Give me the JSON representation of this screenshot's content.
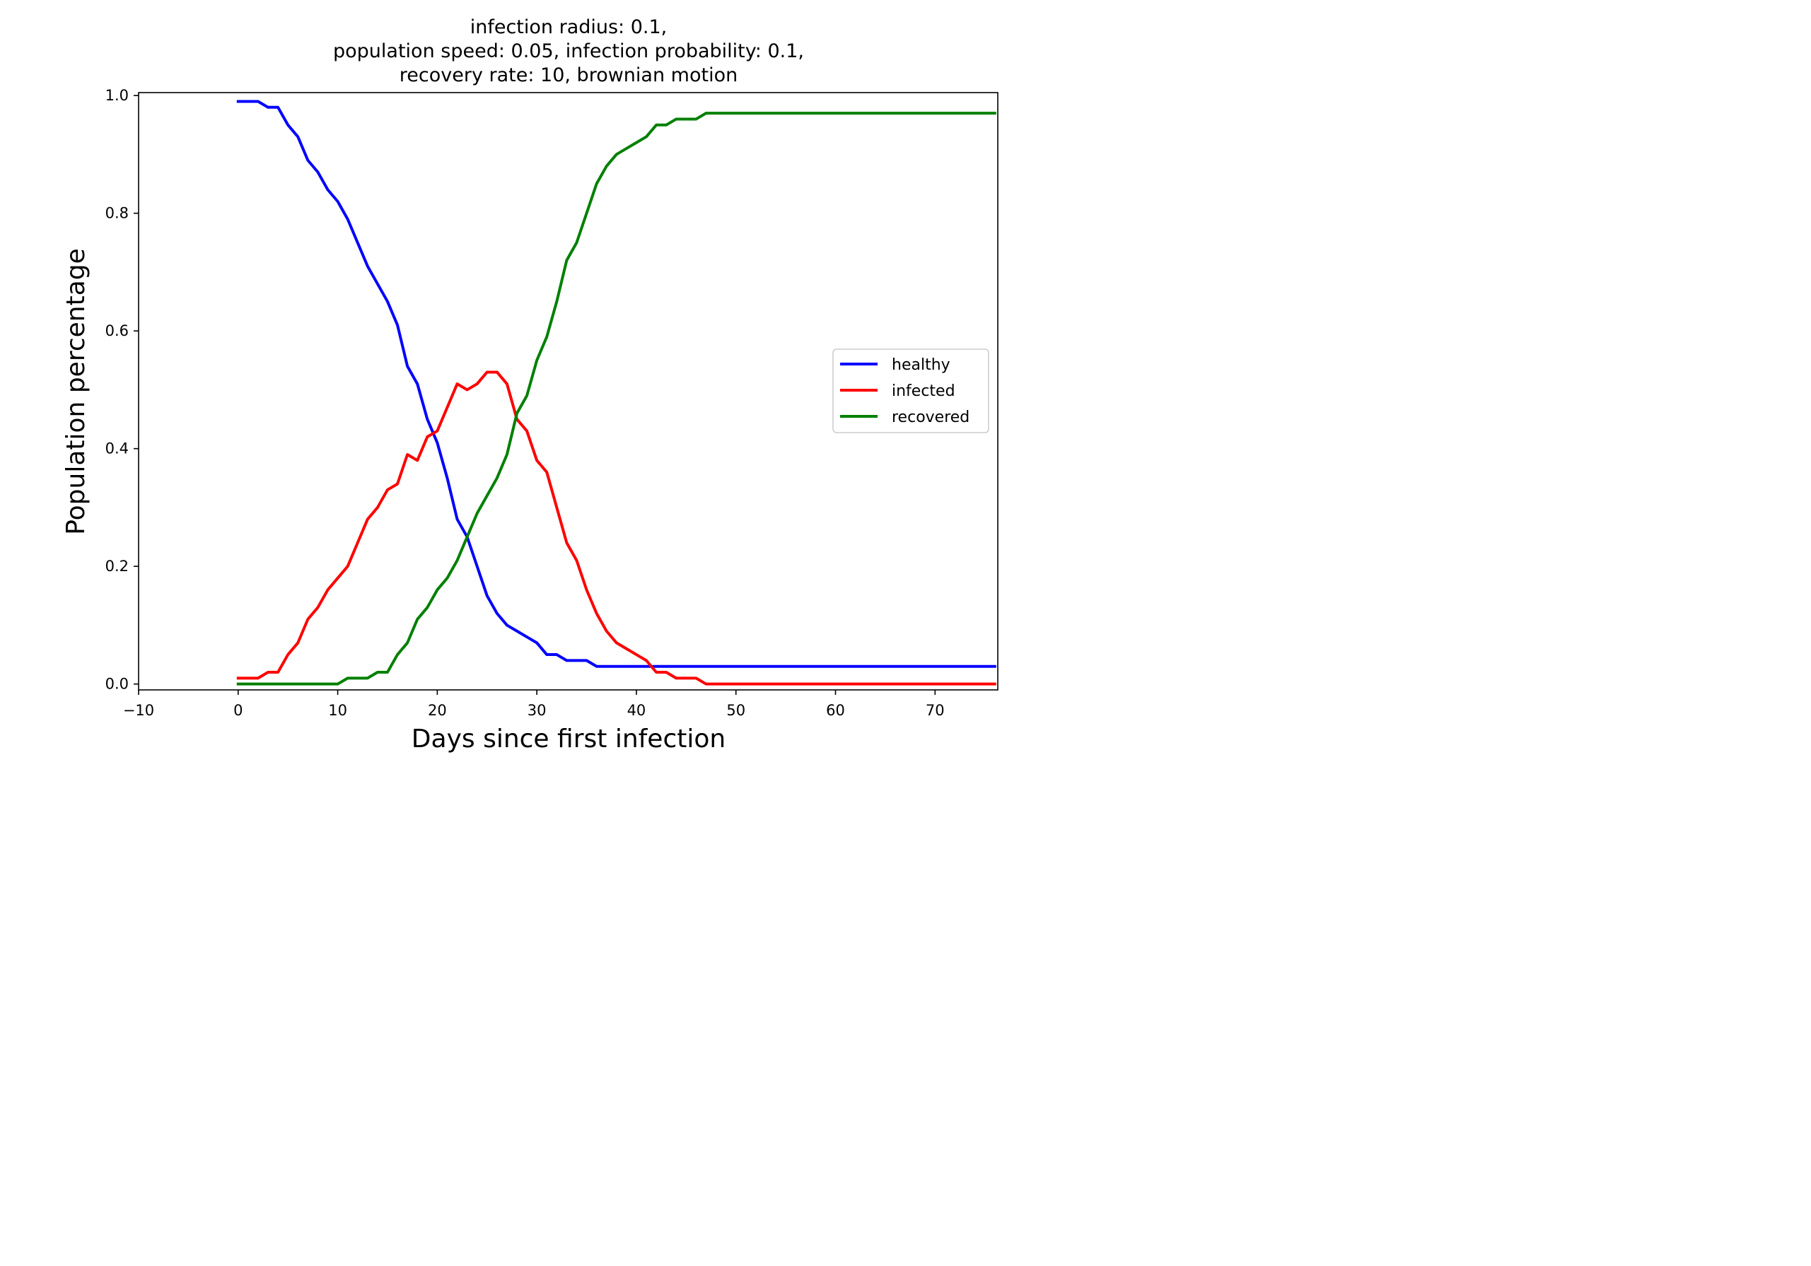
{
  "chart_data": {
    "type": "line",
    "title": [
      "infection radius: 0.1,",
      "population speed: 0.05, infection probability: 0.1,",
      "recovery rate: 10, brownian motion"
    ],
    "xlabel": "Days since first infection",
    "ylabel": "Population percentage",
    "xlim": [
      -10,
      76.3
    ],
    "ylim": [
      -0.01,
      1.005
    ],
    "xticks": [
      -10,
      0,
      10,
      20,
      30,
      40,
      50,
      60,
      70
    ],
    "xtick_labels": [
      "−10",
      "0",
      "10",
      "20",
      "30",
      "40",
      "50",
      "60",
      "70"
    ],
    "yticks": [
      0.0,
      0.2,
      0.4,
      0.6,
      0.8,
      1.0
    ],
    "ytick_labels": [
      "0.0",
      "0.2",
      "0.4",
      "0.6",
      "0.8",
      "1.0"
    ],
    "grid": false,
    "legend_position": "center-right",
    "x": [
      0,
      1,
      2,
      3,
      4,
      5,
      6,
      7,
      8,
      9,
      10,
      11,
      12,
      13,
      14,
      15,
      16,
      17,
      18,
      19,
      20,
      21,
      22,
      23,
      24,
      25,
      26,
      27,
      28,
      29,
      30,
      31,
      32,
      33,
      34,
      35,
      36,
      37,
      38,
      39,
      40,
      41,
      42,
      43,
      44,
      45,
      46,
      47,
      48,
      49,
      50,
      51,
      52,
      53,
      54,
      55,
      56,
      57,
      58,
      59,
      60,
      61,
      62,
      63,
      64,
      65,
      66,
      67,
      68,
      69,
      70,
      71,
      72,
      73,
      74,
      75,
      76
    ],
    "series": [
      {
        "name": "healthy",
        "color": "#0000ff",
        "values": [
          0.99,
          0.99,
          0.99,
          0.98,
          0.98,
          0.95,
          0.93,
          0.89,
          0.87,
          0.84,
          0.82,
          0.79,
          0.75,
          0.71,
          0.68,
          0.65,
          0.61,
          0.54,
          0.51,
          0.45,
          0.41,
          0.35,
          0.28,
          0.25,
          0.2,
          0.15,
          0.12,
          0.1,
          0.09,
          0.08,
          0.07,
          0.05,
          0.05,
          0.04,
          0.04,
          0.04,
          0.03,
          0.03,
          0.03,
          0.03,
          0.03,
          0.03,
          0.03,
          0.03,
          0.03,
          0.03,
          0.03,
          0.03,
          0.03,
          0.03,
          0.03,
          0.03,
          0.03,
          0.03,
          0.03,
          0.03,
          0.03,
          0.03,
          0.03,
          0.03,
          0.03,
          0.03,
          0.03,
          0.03,
          0.03,
          0.03,
          0.03,
          0.03,
          0.03,
          0.03,
          0.03,
          0.03,
          0.03,
          0.03,
          0.03,
          0.03,
          0.03
        ]
      },
      {
        "name": "infected",
        "color": "#ff0000",
        "values": [
          0.01,
          0.01,
          0.01,
          0.02,
          0.02,
          0.05,
          0.07,
          0.11,
          0.13,
          0.16,
          0.18,
          0.2,
          0.24,
          0.28,
          0.3,
          0.33,
          0.34,
          0.39,
          0.38,
          0.42,
          0.43,
          0.47,
          0.51,
          0.5,
          0.51,
          0.53,
          0.53,
          0.51,
          0.45,
          0.43,
          0.38,
          0.36,
          0.3,
          0.24,
          0.21,
          0.16,
          0.12,
          0.09,
          0.07,
          0.06,
          0.05,
          0.04,
          0.02,
          0.02,
          0.01,
          0.01,
          0.01,
          0.0,
          0.0,
          0.0,
          0.0,
          0.0,
          0.0,
          0.0,
          0.0,
          0.0,
          0.0,
          0.0,
          0.0,
          0.0,
          0.0,
          0.0,
          0.0,
          0.0,
          0.0,
          0.0,
          0.0,
          0.0,
          0.0,
          0.0,
          0.0,
          0.0,
          0.0,
          0.0,
          0.0,
          0.0,
          0.0
        ]
      },
      {
        "name": "recovered",
        "color": "#008000",
        "values": [
          0.0,
          0.0,
          0.0,
          0.0,
          0.0,
          0.0,
          0.0,
          0.0,
          0.0,
          0.0,
          0.0,
          0.01,
          0.01,
          0.01,
          0.02,
          0.02,
          0.05,
          0.07,
          0.11,
          0.13,
          0.16,
          0.18,
          0.21,
          0.25,
          0.29,
          0.32,
          0.35,
          0.39,
          0.46,
          0.49,
          0.55,
          0.59,
          0.65,
          0.72,
          0.75,
          0.8,
          0.85,
          0.88,
          0.9,
          0.91,
          0.92,
          0.93,
          0.95,
          0.95,
          0.96,
          0.96,
          0.96,
          0.97,
          0.97,
          0.97,
          0.97,
          0.97,
          0.97,
          0.97,
          0.97,
          0.97,
          0.97,
          0.97,
          0.97,
          0.97,
          0.97,
          0.97,
          0.97,
          0.97,
          0.97,
          0.97,
          0.97,
          0.97,
          0.97,
          0.97,
          0.97,
          0.97,
          0.97,
          0.97,
          0.97,
          0.97,
          0.97
        ]
      }
    ]
  }
}
